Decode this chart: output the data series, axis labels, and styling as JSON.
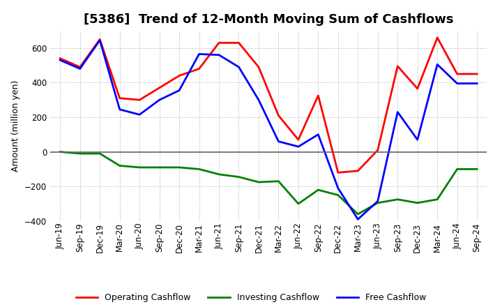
{
  "title": "[5386]  Trend of 12-Month Moving Sum of Cashflows",
  "ylabel": "Amount (million yen)",
  "xlabels": [
    "Jun-19",
    "Sep-19",
    "Dec-19",
    "Mar-20",
    "Jun-20",
    "Sep-20",
    "Dec-20",
    "Mar-21",
    "Jun-21",
    "Sep-21",
    "Dec-21",
    "Mar-22",
    "Jun-22",
    "Sep-22",
    "Dec-22",
    "Mar-23",
    "Jun-23",
    "Sep-23",
    "Dec-23",
    "Mar-24",
    "Jun-24",
    "Sep-24"
  ],
  "operating": [
    540,
    490,
    650,
    310,
    300,
    370,
    440,
    480,
    630,
    630,
    490,
    210,
    70,
    325,
    -120,
    -110,
    10,
    495,
    365,
    660,
    450,
    450
  ],
  "investing": [
    0,
    -10,
    -10,
    -80,
    -90,
    -90,
    -90,
    -100,
    -130,
    -145,
    -175,
    -170,
    -300,
    -220,
    -250,
    -360,
    -295,
    -275,
    -295,
    -275,
    -100,
    -100
  ],
  "free": [
    530,
    480,
    645,
    245,
    215,
    300,
    355,
    565,
    560,
    490,
    300,
    60,
    30,
    100,
    -210,
    -390,
    -285,
    230,
    70,
    505,
    395,
    395
  ],
  "ylim": [
    -400,
    700
  ],
  "yticks": [
    -400,
    -200,
    0,
    200,
    400,
    600
  ],
  "operating_color": "#ff0000",
  "investing_color": "#008000",
  "free_color": "#0000ff",
  "bg_color": "#ffffff",
  "plot_bg_color": "#ffffff",
  "grid_color": "#aaaaaa",
  "linewidth": 2.0,
  "title_fontsize": 13,
  "axis_fontsize": 8.5
}
